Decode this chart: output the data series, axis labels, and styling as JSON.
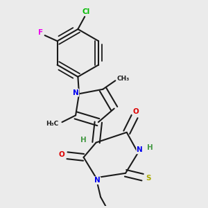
{
  "background_color": "#ebebeb",
  "bond_color": "#1a1a1a",
  "atom_colors": {
    "N": "#0000ee",
    "O": "#dd0000",
    "S": "#aaaa00",
    "Cl": "#00bb00",
    "F": "#ee00ee",
    "H": "#449944",
    "C": "#1a1a1a"
  },
  "figsize": [
    3.0,
    3.0
  ],
  "dpi": 100
}
